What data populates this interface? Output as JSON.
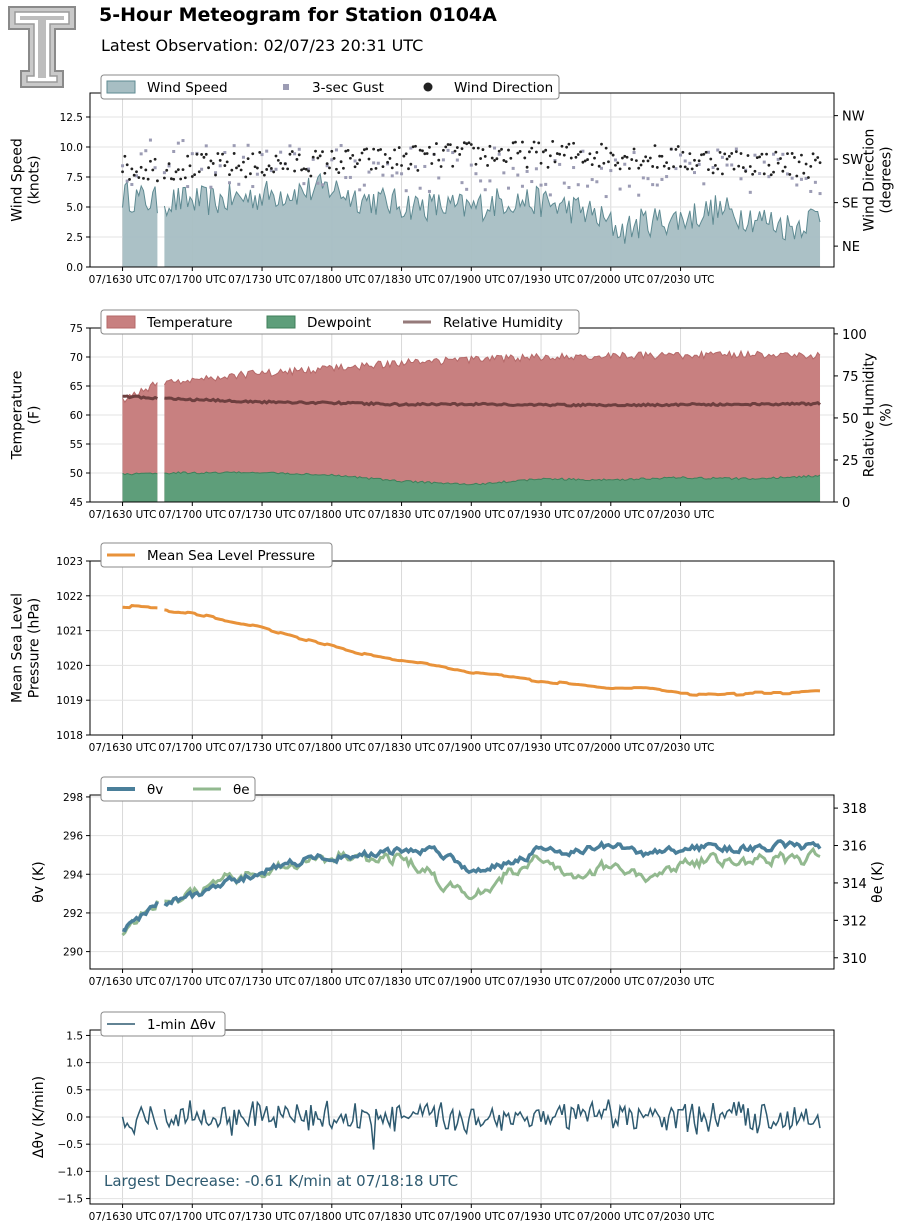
{
  "header": {
    "title": "5-Hour Meteogram for Station 0104A",
    "subtitle": "Latest Observation: 02/07/23 20:31 UTC"
  },
  "colors": {
    "wind": "#a7bec3",
    "wind_line": "#5e8a92",
    "gust": "#9c9cb4",
    "direction": "#222222",
    "temperature": "#c88080",
    "temperature_line": "#b56868",
    "dewpoint": "#5e9e7a",
    "dewpoint_line": "#3f7f5a",
    "rh": "#6e3f3f",
    "mslp": "#e8923a",
    "theta_v": "#4a7f9a",
    "theta_e": "#92b98f",
    "dtheta": "#2e5a70"
  },
  "chart_data": [
    {
      "id": "wind",
      "type": "area",
      "x_ticks": [
        "07/1630 UTC",
        "07/1700 UTC",
        "07/1730 UTC",
        "07/1800 UTC",
        "07/1830 UTC",
        "07/1900 UTC",
        "07/1930 UTC",
        "07/2000 UTC",
        "07/2030 UTC"
      ],
      "ylabel": [
        "Wind Speed",
        "(knots)"
      ],
      "ylim": [
        0,
        14.5
      ],
      "yticks": [
        "0.0",
        "2.5",
        "5.0",
        "7.5",
        "10.0",
        "12.5"
      ],
      "ytick_values": [
        0,
        2.5,
        5,
        7.5,
        10,
        12.5
      ],
      "ylabel2": [
        "Wind Direction",
        "(degrees)"
      ],
      "yticks2": [
        "NE",
        "SE",
        "SW",
        "NW"
      ],
      "ytick2_fraction": [
        0.12,
        0.37,
        0.62,
        0.87
      ],
      "legend": [
        "Wind Speed",
        "3-sec Gust",
        "Wind Direction"
      ],
      "gap_minutes": [
        15.5,
        17.5
      ],
      "series": [
        {
          "name": "Wind Speed",
          "profile": [
            [
              0,
              6.0
            ],
            [
              15,
              5.4
            ],
            [
              17,
              5.5
            ],
            [
              40,
              5.5
            ],
            [
              70,
              6.2
            ],
            [
              90,
              6.6
            ],
            [
              100,
              5.8
            ],
            [
              120,
              5.2
            ],
            [
              150,
              4.9
            ],
            [
              165,
              5.6
            ],
            [
              180,
              5.4
            ],
            [
              200,
              4.6
            ],
            [
              215,
              3.0
            ],
            [
              225,
              3.8
            ],
            [
              240,
              4.0
            ],
            [
              255,
              4.8
            ],
            [
              270,
              4.2
            ],
            [
              288,
              3.3
            ],
            [
              300,
              4.5
            ]
          ]
        },
        {
          "name": "3-sec Gust",
          "profile": [
            [
              0,
              7.9
            ],
            [
              100,
              7.4
            ],
            [
              200,
              7.0
            ],
            [
              300,
              7.2
            ]
          ]
        },
        {
          "name": "Wind Direction",
          "profile": [
            [
              0,
              8.2
            ],
            [
              40,
              8.4
            ],
            [
              100,
              8.8
            ],
            [
              150,
              9.4
            ],
            [
              200,
              9.4
            ],
            [
              250,
              8.9
            ],
            [
              300,
              8.5
            ]
          ]
        }
      ]
    },
    {
      "id": "temperature",
      "type": "area",
      "x_ticks": [
        "07/1630 UTC",
        "07/1700 UTC",
        "07/1730 UTC",
        "07/1800 UTC",
        "07/1830 UTC",
        "07/1900 UTC",
        "07/1930 UTC",
        "07/2000 UTC",
        "07/2030 UTC"
      ],
      "ylabel": [
        "Temperature",
        "(F)"
      ],
      "ylim": [
        45,
        75
      ],
      "yticks": [
        "45",
        "50",
        "55",
        "60",
        "65",
        "70",
        "75"
      ],
      "ytick_values": [
        45,
        50,
        55,
        60,
        65,
        70,
        75
      ],
      "ylabel2": [
        "Relative Humidity",
        "(%)"
      ],
      "ylim2": [
        0,
        103.5
      ],
      "yticks2": [
        "0",
        "25",
        "50",
        "75",
        "100"
      ],
      "ytick2_values": [
        0,
        25,
        50,
        75,
        100
      ],
      "legend": [
        "Temperature",
        "Dewpoint",
        "Relative Humidity"
      ],
      "gap_minutes": [
        15.5,
        17.5
      ],
      "series": [
        {
          "name": "Temperature",
          "profile": [
            [
              0,
              62.5
            ],
            [
              15,
              65.5
            ],
            [
              17,
              65.5
            ],
            [
              30,
              66.2
            ],
            [
              60,
              67.2
            ],
            [
              90,
              68.0
            ],
            [
              120,
              69.0
            ],
            [
              150,
              69.5
            ],
            [
              180,
              70.0
            ],
            [
              210,
              70.3
            ],
            [
              240,
              70.2
            ],
            [
              270,
              70.5
            ],
            [
              300,
              70.2
            ]
          ]
        },
        {
          "name": "Dewpoint",
          "profile": [
            [
              0,
              49.8
            ],
            [
              15,
              50.0
            ],
            [
              17,
              50.0
            ],
            [
              60,
              50.1
            ],
            [
              90,
              49.6
            ],
            [
              120,
              48.6
            ],
            [
              150,
              48.0
            ],
            [
              180,
              49.0
            ],
            [
              210,
              48.8
            ],
            [
              240,
              49.2
            ],
            [
              270,
              49.0
            ],
            [
              300,
              49.5
            ]
          ]
        },
        {
          "name": "Relative Humidity",
          "profile": [
            [
              0,
              63
            ],
            [
              15,
              61.5
            ],
            [
              17,
              61.5
            ],
            [
              60,
              59.5
            ],
            [
              90,
              59.0
            ],
            [
              120,
              58.0
            ],
            [
              150,
              58.2
            ],
            [
              180,
              57.8
            ],
            [
              210,
              57.5
            ],
            [
              240,
              58.0
            ],
            [
              270,
              58.0
            ],
            [
              300,
              58.5
            ]
          ]
        }
      ]
    },
    {
      "id": "mslp",
      "type": "line",
      "x_ticks": [
        "07/1630 UTC",
        "07/1700 UTC",
        "07/1730 UTC",
        "07/1800 UTC",
        "07/1830 UTC",
        "07/1900 UTC",
        "07/1930 UTC",
        "07/2000 UTC",
        "07/2030 UTC"
      ],
      "ylabel": [
        "Mean Sea Level",
        "Pressure (hPa)"
      ],
      "ylim": [
        1018,
        1023
      ],
      "yticks": [
        "1018",
        "1019",
        "1020",
        "1021",
        "1022",
        "1023"
      ],
      "ytick_values": [
        1018,
        1019,
        1020,
        1021,
        1022,
        1023
      ],
      "legend": [
        "Mean Sea Level Pressure"
      ],
      "gap_minutes": [
        15.5,
        17.5
      ],
      "series": [
        {
          "name": "Mean Sea Level Pressure",
          "profile": [
            [
              0,
              1021.7
            ],
            [
              15,
              1021.65
            ],
            [
              17,
              1021.6
            ],
            [
              30,
              1021.5
            ],
            [
              45,
              1021.3
            ],
            [
              60,
              1021.1
            ],
            [
              75,
              1020.8
            ],
            [
              90,
              1020.55
            ],
            [
              105,
              1020.3
            ],
            [
              120,
              1020.15
            ],
            [
              135,
              1020.0
            ],
            [
              150,
              1019.8
            ],
            [
              165,
              1019.7
            ],
            [
              180,
              1019.55
            ],
            [
              195,
              1019.45
            ],
            [
              210,
              1019.35
            ],
            [
              225,
              1019.35
            ],
            [
              240,
              1019.2
            ],
            [
              255,
              1019.15
            ],
            [
              270,
              1019.2
            ],
            [
              285,
              1019.2
            ],
            [
              300,
              1019.25
            ]
          ]
        }
      ]
    },
    {
      "id": "theta",
      "type": "line",
      "x_ticks": [
        "07/1630 UTC",
        "07/1700 UTC",
        "07/1730 UTC",
        "07/1800 UTC",
        "07/1830 UTC",
        "07/1900 UTC",
        "07/1930 UTC",
        "07/2000 UTC",
        "07/2030 UTC"
      ],
      "ylabel": [
        "θv (K)"
      ],
      "ylim": [
        289.1,
        298.1
      ],
      "yticks": [
        "290",
        "292",
        "294",
        "296",
        "298"
      ],
      "ytick_values": [
        290,
        292,
        294,
        296,
        298
      ],
      "ylabel2": [
        "θe (K)"
      ],
      "ylim2": [
        309.4,
        318.7
      ],
      "yticks2": [
        "310",
        "312",
        "314",
        "316",
        "318"
      ],
      "ytick2_values": [
        310,
        312,
        314,
        316,
        318
      ],
      "legend": [
        "θv",
        "θe"
      ],
      "gap_minutes": [
        15.5,
        17.5
      ],
      "series": [
        {
          "name": "θv",
          "profile": [
            [
              0,
              291.0
            ],
            [
              5,
              291.6
            ],
            [
              15,
              292.4
            ],
            [
              17,
              292.4
            ],
            [
              30,
              292.9
            ],
            [
              50,
              293.7
            ],
            [
              65,
              294.4
            ],
            [
              80,
              294.8
            ],
            [
              100,
              295.0
            ],
            [
              120,
              295.2
            ],
            [
              135,
              295.3
            ],
            [
              150,
              294.2
            ],
            [
              165,
              294.6
            ],
            [
              180,
              295.3
            ],
            [
              195,
              295.2
            ],
            [
              210,
              295.5
            ],
            [
              225,
              295.0
            ],
            [
              240,
              295.3
            ],
            [
              255,
              295.4
            ],
            [
              270,
              295.3
            ],
            [
              285,
              295.5
            ],
            [
              300,
              295.3
            ]
          ]
        },
        {
          "name": "θe",
          "profile": [
            [
              0,
              311.2
            ],
            [
              5,
              311.9
            ],
            [
              15,
              312.9
            ],
            [
              17,
              312.9
            ],
            [
              30,
              313.4
            ],
            [
              50,
              314.2
            ],
            [
              65,
              314.8
            ],
            [
              80,
              315.2
            ],
            [
              100,
              315.4
            ],
            [
              120,
              315.3
            ],
            [
              135,
              314.3
            ],
            [
              150,
              313.2
            ],
            [
              165,
              314.5
            ],
            [
              180,
              315.2
            ],
            [
              195,
              314.4
            ],
            [
              210,
              315.0
            ],
            [
              225,
              314.0
            ],
            [
              240,
              315.0
            ],
            [
              255,
              315.3
            ],
            [
              270,
              315.2
            ],
            [
              285,
              315.3
            ],
            [
              300,
              315.3
            ]
          ]
        }
      ]
    },
    {
      "id": "dtheta",
      "type": "line",
      "x_ticks": [
        "07/1630 UTC",
        "07/1700 UTC",
        "07/1730 UTC",
        "07/1800 UTC",
        "07/1830 UTC",
        "07/1900 UTC",
        "07/1930 UTC",
        "07/2000 UTC",
        "07/2030 UTC"
      ],
      "ylabel": [
        "Δθv (K/min)"
      ],
      "ylim": [
        -1.6,
        1.6
      ],
      "yticks": [
        "−1.5",
        "−1.0",
        "−0.5",
        "0.0",
        "0.5",
        "1.0",
        "1.5"
      ],
      "ytick_values": [
        -1.5,
        -1.0,
        -0.5,
        0.0,
        0.5,
        1.0,
        1.5
      ],
      "legend": [
        "1-min Δθv"
      ],
      "gap_minutes": [
        15.5,
        17.5
      ],
      "annotation": "Largest Decrease: -0.61 K/min at 07/18:18 UTC",
      "series": [
        {
          "name": "1-min Δθv",
          "amplitude": 0.25,
          "min": -0.61
        }
      ]
    }
  ]
}
